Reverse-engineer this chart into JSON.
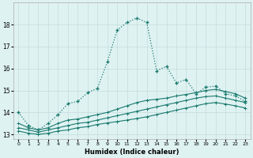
{
  "xlabel": "Humidex (Indice chaleur)",
  "bg_color": "#dff2f2",
  "grid_color": "#c8e0e0",
  "line_color": "#1a7a6e",
  "xlim": [
    -0.5,
    23.5
  ],
  "ylim": [
    12.8,
    19.0
  ],
  "yticks": [
    13,
    14,
    15,
    16,
    17,
    18
  ],
  "xticks": [
    0,
    1,
    2,
    3,
    4,
    5,
    6,
    7,
    8,
    9,
    10,
    11,
    12,
    13,
    14,
    15,
    16,
    17,
    18,
    19,
    20,
    21,
    22,
    23
  ],
  "series1_x": [
    0,
    1,
    2,
    3,
    4,
    5,
    6,
    7,
    8,
    9,
    10,
    11,
    12,
    13,
    14,
    15,
    16,
    17,
    18,
    19,
    20,
    21,
    22,
    23
  ],
  "series1_y": [
    14.0,
    13.4,
    13.2,
    13.5,
    13.9,
    14.4,
    14.5,
    14.9,
    15.1,
    16.3,
    17.75,
    18.1,
    18.3,
    18.1,
    15.9,
    16.1,
    15.35,
    15.5,
    14.85,
    15.15,
    15.2,
    14.85,
    14.75,
    14.5
  ],
  "series2_x": [
    0,
    1,
    2,
    3,
    4,
    5,
    6,
    7,
    8,
    9,
    10,
    11,
    12,
    13,
    14,
    15,
    16,
    17,
    18,
    19,
    20,
    21,
    22,
    23
  ],
  "series2_y": [
    13.5,
    13.3,
    13.2,
    13.3,
    13.5,
    13.65,
    13.7,
    13.8,
    13.9,
    14.0,
    14.15,
    14.3,
    14.45,
    14.55,
    14.6,
    14.65,
    14.75,
    14.82,
    14.9,
    15.0,
    15.05,
    14.95,
    14.85,
    14.65
  ],
  "series3_x": [
    0,
    1,
    2,
    3,
    4,
    5,
    6,
    7,
    8,
    9,
    10,
    11,
    12,
    13,
    14,
    15,
    16,
    17,
    18,
    19,
    20,
    21,
    22,
    23
  ],
  "series3_y": [
    13.3,
    13.2,
    13.1,
    13.2,
    13.3,
    13.4,
    13.5,
    13.55,
    13.65,
    13.75,
    13.85,
    13.95,
    14.05,
    14.15,
    14.25,
    14.35,
    14.45,
    14.55,
    14.65,
    14.72,
    14.75,
    14.65,
    14.55,
    14.45
  ],
  "series4_x": [
    0,
    1,
    2,
    3,
    4,
    5,
    6,
    7,
    8,
    9,
    10,
    11,
    12,
    13,
    14,
    15,
    16,
    17,
    18,
    19,
    20,
    21,
    22,
    23
  ],
  "series4_y": [
    13.15,
    13.05,
    13.0,
    13.05,
    13.15,
    13.2,
    13.3,
    13.35,
    13.45,
    13.52,
    13.58,
    13.65,
    13.72,
    13.8,
    13.9,
    14.0,
    14.1,
    14.2,
    14.3,
    14.4,
    14.45,
    14.38,
    14.3,
    14.2
  ]
}
